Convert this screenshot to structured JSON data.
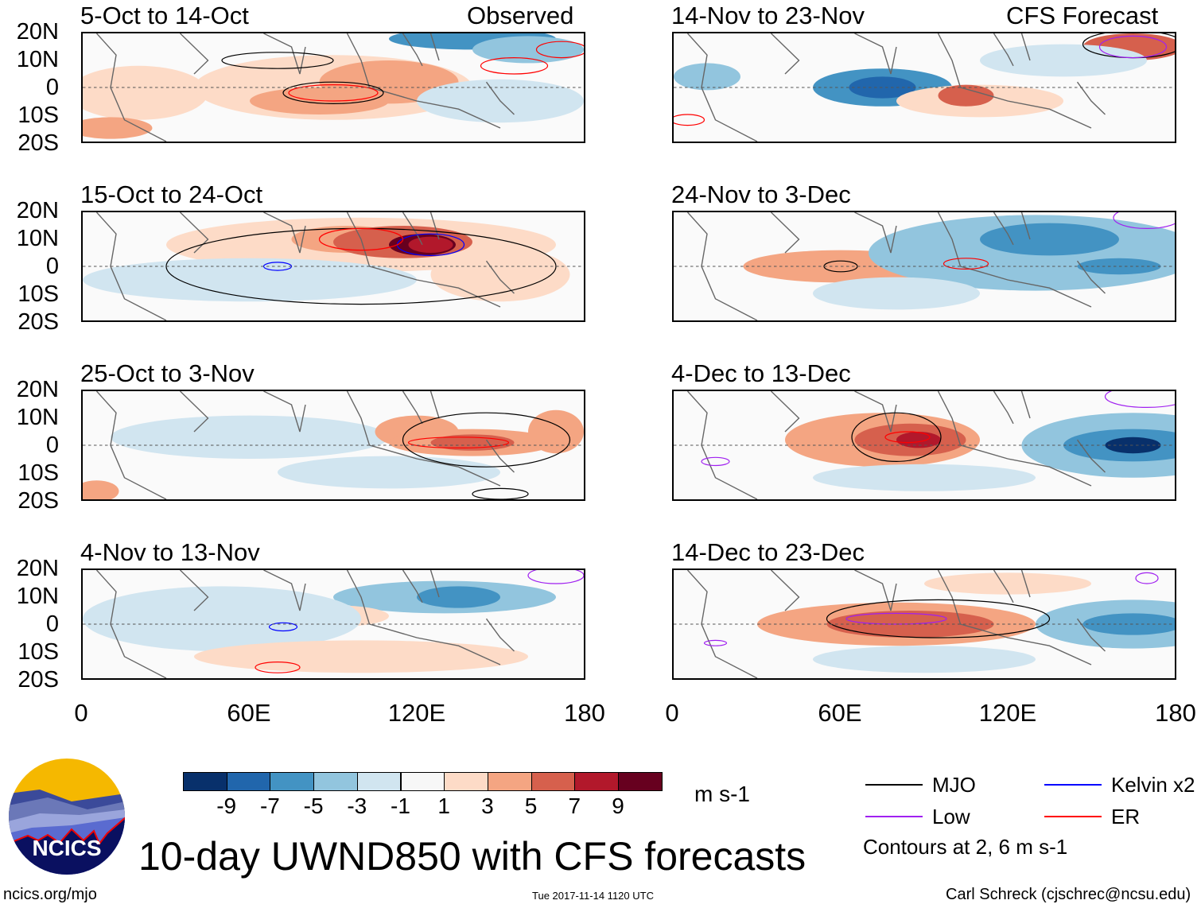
{
  "left_header_right": "Observed",
  "right_header_right": "CFS Forecast",
  "panels": [
    {
      "id": "p1",
      "label": "5-Oct to 14-Oct",
      "col": "left",
      "row": 0
    },
    {
      "id": "p2",
      "label": "15-Oct to 24-Oct",
      "col": "left",
      "row": 1
    },
    {
      "id": "p3",
      "label": "25-Oct to 3-Nov",
      "col": "left",
      "row": 2
    },
    {
      "id": "p4",
      "label": "4-Nov to 13-Nov",
      "col": "left",
      "row": 3
    },
    {
      "id": "p5",
      "label": "14-Nov to 23-Nov",
      "col": "right",
      "row": 0
    },
    {
      "id": "p6",
      "label": "24-Nov to 3-Dec",
      "col": "right",
      "row": 1
    },
    {
      "id": "p7",
      "label": "4-Dec to 13-Dec",
      "col": "right",
      "row": 2
    },
    {
      "id": "p8",
      "label": "14-Dec to 23-Dec",
      "col": "right",
      "row": 3
    }
  ],
  "lat_labels": [
    "20N",
    "10N",
    "0",
    "10S",
    "20S"
  ],
  "lon_labels": [
    "0",
    "60E",
    "120E",
    "180"
  ],
  "colorbar": {
    "colors": [
      "#08306b",
      "#2166ac",
      "#4393c3",
      "#92c5de",
      "#d1e5f0",
      "#f7f7f7",
      "#fddbc7",
      "#f4a582",
      "#d6604d",
      "#b2182b",
      "#67001f"
    ],
    "labels": [
      "-9",
      "-7",
      "-5",
      "-3",
      "-1",
      "1",
      "3",
      "5",
      "7",
      "9"
    ],
    "units": "m s-1"
  },
  "legend": {
    "items": [
      {
        "label": "MJO",
        "color": "#000000"
      },
      {
        "label": "Kelvin x2",
        "color": "#0000ff"
      },
      {
        "label": "Low",
        "color": "#a020f0"
      },
      {
        "label": "ER",
        "color": "#ff0000"
      }
    ],
    "note": "Contours at 2, 6 m s-1"
  },
  "title": "10-day UWND850 with CFS forecasts",
  "logo_text": "NCICS",
  "url": "ncics.org/mjo",
  "timestamp": "Tue 2017-11-14 1120 UTC",
  "credit": "Carl Schreck (cjschrec@ncsu.edu)"
}
